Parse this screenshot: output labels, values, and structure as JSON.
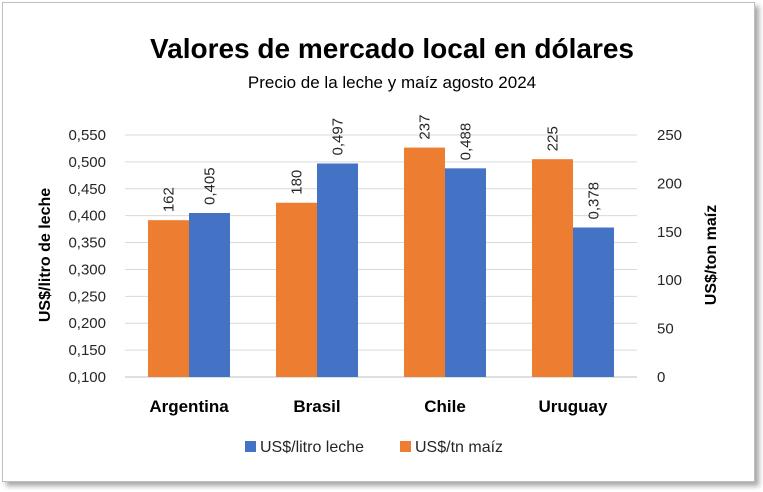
{
  "chart_data": {
    "type": "bar",
    "title": "Valores de mercado local en dólares",
    "subtitle": "Precio de la leche y maíz agosto 2024",
    "categories": [
      "Argentina",
      "Brasil",
      "Chile",
      "Uruguay"
    ],
    "series": [
      {
        "name": "US$/tn maíz",
        "axis": "right",
        "color": "#ED7D31",
        "values": [
          162,
          180,
          237,
          225
        ],
        "labels": [
          "162",
          "180",
          "237",
          "225"
        ]
      },
      {
        "name": "US$/litro leche",
        "axis": "left",
        "color": "#4472C4",
        "values": [
          0.405,
          0.497,
          0.488,
          0.378
        ],
        "labels": [
          "0,405",
          "0,497",
          "0,488",
          "0,378"
        ]
      }
    ],
    "ylabel": "US$/litro de leche",
    "y2label": "US$/ton maíz",
    "ylim": [
      0.1,
      0.55
    ],
    "y2lim": [
      0,
      250
    ],
    "yticks": [
      "0,100",
      "0,150",
      "0,200",
      "0,250",
      "0,300",
      "0,350",
      "0,400",
      "0,450",
      "0,500",
      "0,550"
    ],
    "y2ticks": [
      "0",
      "50",
      "100",
      "150",
      "200",
      "250"
    ],
    "legend": [
      "US$/litro leche",
      "US$/tn maíz"
    ],
    "legend_position": "bottom",
    "grid": true
  }
}
